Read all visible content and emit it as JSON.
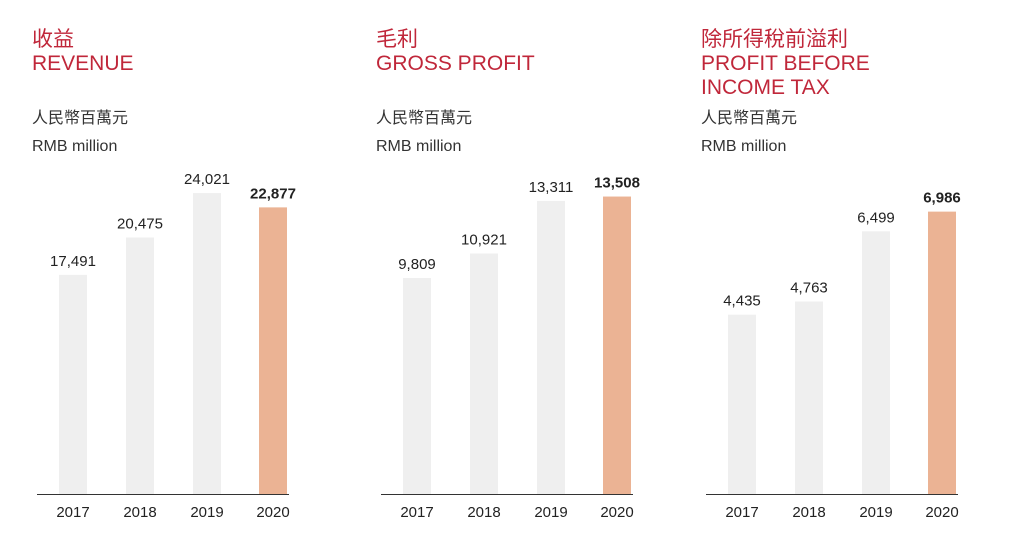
{
  "colors": {
    "title": "#c0273a",
    "bar_default": "#efefef",
    "bar_highlight": "#ebb394",
    "axis": "#333333",
    "text": "#222222"
  },
  "chart_data": [
    {
      "type": "bar",
      "title_zh": "收益",
      "title_en": [
        "REVENUE"
      ],
      "unit_zh": "人民幣百萬元",
      "unit_en": "RMB million",
      "categories": [
        "2017",
        "2018",
        "2019",
        "2020"
      ],
      "values": [
        17491,
        20475,
        24021,
        22877
      ],
      "value_labels": [
        "17,491",
        "20,475",
        "24,021",
        "22,877"
      ],
      "highlight_index": 3,
      "ylim": [
        0,
        26100
      ],
      "grid": false
    },
    {
      "type": "bar",
      "title_zh": "毛利",
      "title_en": [
        "GROSS PROFIT"
      ],
      "unit_zh": "人民幣百萬元",
      "unit_en": "RMB million",
      "categories": [
        "2017",
        "2018",
        "2019",
        "2020"
      ],
      "values": [
        9809,
        10921,
        13311,
        13508
      ],
      "value_labels": [
        "9,809",
        "10,921",
        "13,311",
        "13,508"
      ],
      "highlight_index": 3,
      "ylim": [
        0,
        14850
      ],
      "grid": false
    },
    {
      "type": "bar",
      "title_zh": "除所得稅前溢利",
      "title_en": [
        "PROFIT BEFORE",
        "INCOME TAX"
      ],
      "unit_zh": "人民幣百萬元",
      "unit_en": "RMB million",
      "categories": [
        "2017",
        "2018",
        "2019",
        "2020"
      ],
      "values": [
        4435,
        4763,
        6499,
        6986
      ],
      "value_labels": [
        "4,435",
        "4,763",
        "6,499",
        "6,986"
      ],
      "highlight_index": 3,
      "ylim": [
        0,
        8090
      ],
      "grid": false
    }
  ]
}
